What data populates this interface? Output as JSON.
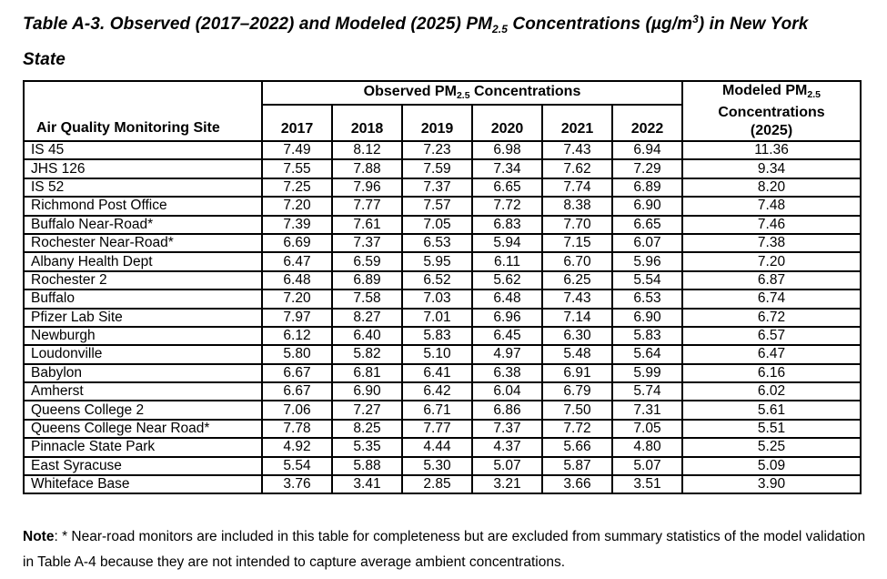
{
  "colors": {
    "text": "#000000",
    "background": "#ffffff",
    "border": "#000000"
  },
  "title": {
    "line1": {
      "pre": "Table A-3. Observed (2017–2022) and Modeled (2025) PM",
      "sub": "2.5",
      "mid": " Concentrations (µg/m",
      "sup": "3",
      "post": ") in New York"
    },
    "line2": "State"
  },
  "table": {
    "site_header": "Air Quality Monitoring Site",
    "observed_header": {
      "pre": "Observed PM",
      "sub": "2.5",
      "post": " Concentrations"
    },
    "modeled_header": {
      "line1_pre": "Modeled PM",
      "line1_sub": "2.5",
      "line2": "Concentrations",
      "line3": "(2025)"
    },
    "years": [
      "2017",
      "2018",
      "2019",
      "2020",
      "2021",
      "2022"
    ],
    "rows": [
      {
        "site": "IS 45",
        "values": [
          "7.49",
          "8.12",
          "7.23",
          "6.98",
          "7.43",
          "6.94",
          "11.36"
        ]
      },
      {
        "site": "JHS 126",
        "values": [
          "7.55",
          "7.88",
          "7.59",
          "7.34",
          "7.62",
          "7.29",
          "9.34"
        ]
      },
      {
        "site": "IS 52",
        "values": [
          "7.25",
          "7.96",
          "7.37",
          "6.65",
          "7.74",
          "6.89",
          "8.20"
        ]
      },
      {
        "site": "Richmond Post Office",
        "values": [
          "7.20",
          "7.77",
          "7.57",
          "7.72",
          "8.38",
          "6.90",
          "7.48"
        ]
      },
      {
        "site": "Buffalo Near-Road*",
        "values": [
          "7.39",
          "7.61",
          "7.05",
          "6.83",
          "7.70",
          "6.65",
          "7.46"
        ]
      },
      {
        "site": "Rochester Near-Road*",
        "values": [
          "6.69",
          "7.37",
          "6.53",
          "5.94",
          "7.15",
          "6.07",
          "7.38"
        ]
      },
      {
        "site": "Albany Health Dept",
        "values": [
          "6.47",
          "6.59",
          "5.95",
          "6.11",
          "6.70",
          "5.96",
          "7.20"
        ]
      },
      {
        "site": "Rochester 2",
        "values": [
          "6.48",
          "6.89",
          "6.52",
          "5.62",
          "6.25",
          "5.54",
          "6.87"
        ]
      },
      {
        "site": "Buffalo",
        "values": [
          "7.20",
          "7.58",
          "7.03",
          "6.48",
          "7.43",
          "6.53",
          "6.74"
        ]
      },
      {
        "site": "Pfizer Lab Site",
        "values": [
          "7.97",
          "8.27",
          "7.01",
          "6.96",
          "7.14",
          "6.90",
          "6.72"
        ]
      },
      {
        "site": "Newburgh",
        "values": [
          "6.12",
          "6.40",
          "5.83",
          "6.45",
          "6.30",
          "5.83",
          "6.57"
        ]
      },
      {
        "site": "Loudonville",
        "values": [
          "5.80",
          "5.82",
          "5.10",
          "4.97",
          "5.48",
          "5.64",
          "6.47"
        ]
      },
      {
        "site": "Babylon",
        "values": [
          "6.67",
          "6.81",
          "6.41",
          "6.38",
          "6.91",
          "5.99",
          "6.16"
        ]
      },
      {
        "site": "Amherst",
        "values": [
          "6.67",
          "6.90",
          "6.42",
          "6.04",
          "6.79",
          "5.74",
          "6.02"
        ]
      },
      {
        "site": "Queens College 2",
        "values": [
          "7.06",
          "7.27",
          "6.71",
          "6.86",
          "7.50",
          "7.31",
          "5.61"
        ]
      },
      {
        "site": "Queens College Near Road*",
        "values": [
          "7.78",
          "8.25",
          "7.77",
          "7.37",
          "7.72",
          "7.05",
          "5.51"
        ]
      },
      {
        "site": "Pinnacle State Park",
        "values": [
          "4.92",
          "5.35",
          "4.44",
          "4.37",
          "5.66",
          "4.80",
          "5.25"
        ]
      },
      {
        "site": "East Syracuse",
        "values": [
          "5.54",
          "5.88",
          "5.30",
          "5.07",
          "5.87",
          "5.07",
          "5.09"
        ]
      },
      {
        "site": "Whiteface Base",
        "values": [
          "3.76",
          "3.41",
          "2.85",
          "3.21",
          "3.66",
          "3.51",
          "3.90"
        ]
      }
    ]
  },
  "note": {
    "label": "Note",
    "text": ": * Near-road monitors are included in this table for completeness but are excluded from summary statistics of the model validation in Table A-4 because they are not intended to capture average ambient concentrations."
  }
}
